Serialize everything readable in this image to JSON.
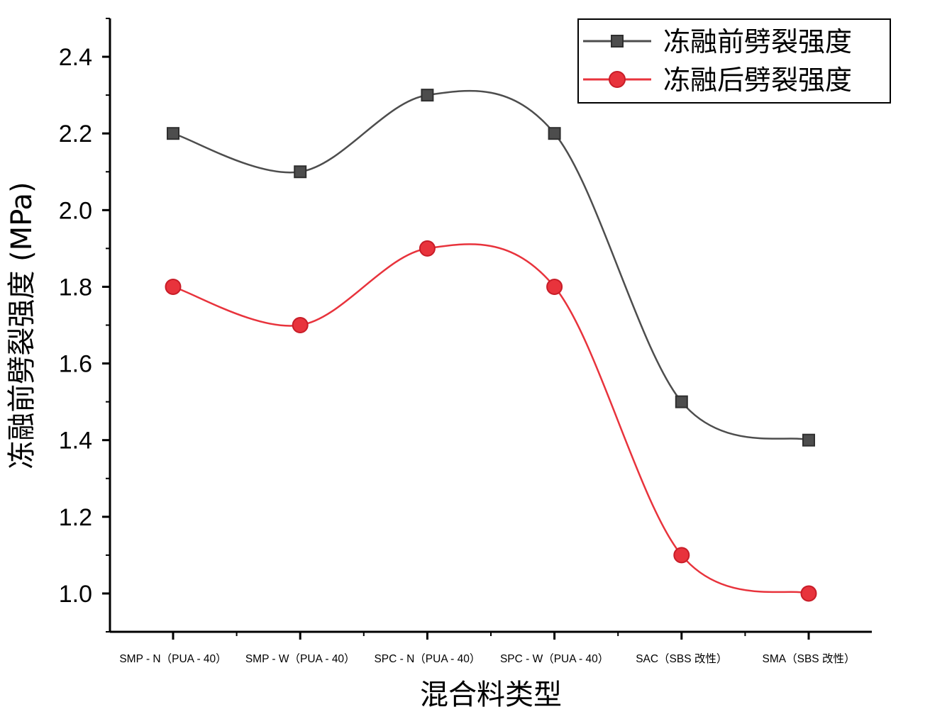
{
  "chart_data": {
    "type": "line",
    "categories": [
      "SMP - N（PUA - 40）",
      "SMP - W（PUA - 40）",
      "SPC - N（PUA - 40）",
      "SPC - W（PUA - 40）",
      "SAC（SBS 改性）",
      "SMA（SBS 改性）"
    ],
    "series": [
      {
        "name": "冻融前劈裂强度",
        "values": [
          2.2,
          2.1,
          2.3,
          2.2,
          1.5,
          1.4
        ],
        "color": "#4d4d4d",
        "marker": "square",
        "smooth": true
      },
      {
        "name": "冻融后劈裂强度",
        "values": [
          1.8,
          1.7,
          1.9,
          1.8,
          1.1,
          1.0
        ],
        "color": "#e8333c",
        "marker": "circle",
        "smooth": true
      }
    ],
    "xlabel": "混合料类型",
    "ylabel": "冻融前劈裂强度 (MPa)",
    "ylim": [
      0.9,
      2.5
    ],
    "yticks": [
      1.0,
      1.2,
      1.4,
      1.6,
      1.8,
      2.0,
      2.2,
      2.4
    ],
    "grid": false,
    "legend": {
      "placement": "top-right",
      "entries": [
        "冻融前劈裂强度",
        "冻融后劈裂强度"
      ]
    }
  }
}
